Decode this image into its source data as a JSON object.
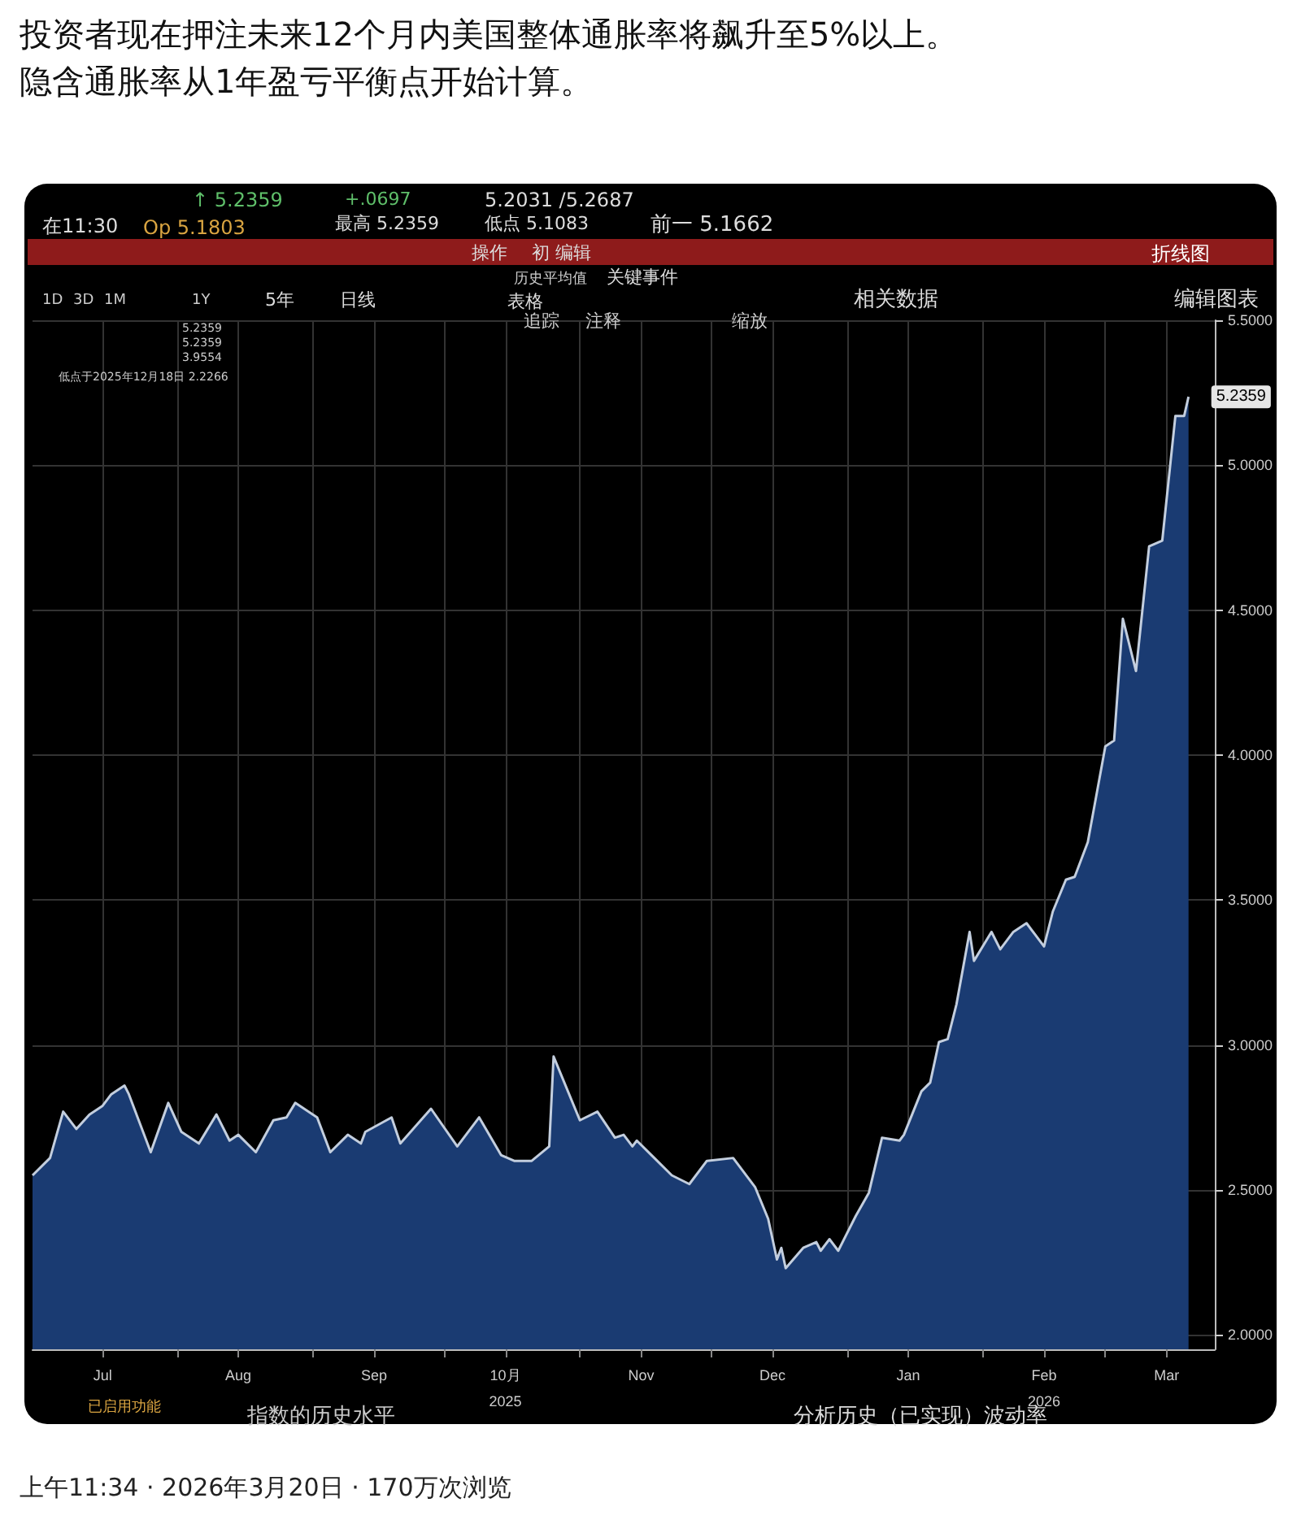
{
  "chart_data": {
    "type": "area",
    "title": "投资者现在押注未来12个月内美国整体通胀率将飙升至5%以上。",
    "subtitle": "隐含通胀率从1年盈亏平衡点开始计算。",
    "x": [
      "2025-06-29",
      "2025-07-03",
      "2025-07-06",
      "2025-07-09",
      "2025-07-12",
      "2025-07-15",
      "2025-07-17",
      "2025-07-20",
      "2025-07-21",
      "2025-07-26",
      "2025-07-30",
      "2025-08-02",
      "2025-08-06",
      "2025-08-10",
      "2025-08-13",
      "2025-08-15",
      "2025-08-19",
      "2025-08-23",
      "2025-08-26",
      "2025-08-28",
      "2025-09-02",
      "2025-09-05",
      "2025-09-09",
      "2025-09-12",
      "2025-09-13",
      "2025-09-19",
      "2025-09-21",
      "2025-09-28",
      "2025-10-04",
      "2025-10-09",
      "2025-10-14",
      "2025-10-17",
      "2025-10-21",
      "2025-10-25",
      "2025-10-26",
      "2025-11-01",
      "2025-11-05",
      "2025-11-09",
      "2025-11-11",
      "2025-11-13",
      "2025-11-14",
      "2025-11-18",
      "2025-11-22",
      "2025-11-26",
      "2025-11-30",
      "2025-12-06",
      "2025-12-11",
      "2025-12-14",
      "2025-12-16",
      "2025-12-17",
      "2025-12-18",
      "2025-12-22",
      "2025-12-25",
      "2025-12-26",
      "2025-12-28",
      "2025-12-30",
      "2026-01-03",
      "2026-01-06",
      "2026-01-09",
      "2026-01-13",
      "2026-01-14",
      "2026-01-18",
      "2026-01-20",
      "2026-01-22",
      "2026-01-24",
      "2026-01-26",
      "2026-01-29",
      "2026-01-30",
      "2026-02-03",
      "2026-02-05",
      "2026-02-08",
      "2026-02-11",
      "2026-02-15",
      "2026-02-17",
      "2026-02-20",
      "2026-02-22",
      "2026-02-25",
      "2026-03-01",
      "2026-03-03",
      "2026-03-05",
      "2026-03-08",
      "2026-03-11",
      "2026-03-14",
      "2026-03-17",
      "2026-03-19",
      "2026-03-20"
    ],
    "series": [
      {
        "color": "#1a3b72",
        "values": [
          2.55,
          2.61,
          2.77,
          2.71,
          2.76,
          2.79,
          2.83,
          2.86,
          2.83,
          2.63,
          2.8,
          2.7,
          2.66,
          2.76,
          2.67,
          2.69,
          2.63,
          2.74,
          2.75,
          2.8,
          2.75,
          2.63,
          2.69,
          2.66,
          2.7,
          2.75,
          2.66,
          2.78,
          2.65,
          2.75,
          2.62,
          2.6,
          2.6,
          2.65,
          2.96,
          2.74,
          2.77,
          2.68,
          2.69,
          2.65,
          2.67,
          2.61,
          2.55,
          2.52,
          2.6,
          2.61,
          2.51,
          2.4,
          2.26,
          2.3,
          2.23,
          2.3,
          2.32,
          2.29,
          2.33,
          2.29,
          2.41,
          2.49,
          2.68,
          2.67,
          2.69,
          2.84,
          2.87,
          3.01,
          3.02,
          3.14,
          3.39,
          3.29,
          3.39,
          3.33,
          3.39,
          3.42,
          3.34,
          3.46,
          3.57,
          3.58,
          3.7,
          4.03,
          4.05,
          4.47,
          4.29,
          4.72,
          4.74,
          5.17,
          5.17,
          5.2359
        ],
        "value_labels": [
          null,
          null,
          null,
          null,
          null,
          null,
          null,
          null,
          null,
          null,
          null,
          null,
          null,
          null,
          null,
          null,
          null,
          null,
          null,
          null,
          null,
          null,
          null,
          null,
          null,
          null,
          null,
          null,
          null,
          null,
          null,
          null,
          null,
          null,
          null,
          null,
          null,
          null,
          null,
          null,
          null,
          null,
          null,
          null,
          null,
          null,
          null,
          null,
          null,
          null,
          null,
          null,
          null,
          null,
          null,
          null,
          null,
          null,
          null,
          null,
          null,
          null,
          null,
          null,
          null,
          null,
          null,
          null,
          null,
          null,
          null,
          null,
          null,
          null,
          null,
          null,
          null,
          null,
          null,
          null,
          null,
          null,
          null,
          null,
          null,
          "5.2359"
        ]
      }
    ],
    "xlim": [
      "2025-06-29",
      "2026-03-26"
    ],
    "xticks": [
      {
        "value": "2025-07-15",
        "label": "Jul"
      },
      {
        "value": "2025-08-01",
        "label": null
      },
      {
        "value": "2025-08-15",
        "label": "Aug"
      },
      {
        "value": "2025-09-01",
        "label": null
      },
      {
        "value": "2025-09-15",
        "label": "Sep"
      },
      {
        "value": "2025-10-01",
        "label": null
      },
      {
        "value": "2025-10-15",
        "label": "10月\n2025"
      },
      {
        "value": "2025-11-01",
        "label": null
      },
      {
        "value": "2025-11-15",
        "label": "Nov"
      },
      {
        "value": "2025-12-01",
        "label": null
      },
      {
        "value": "2025-12-15",
        "label": "Dec"
      },
      {
        "value": "2026-01-01",
        "label": null
      },
      {
        "value": "2026-01-15",
        "label": "Jan"
      },
      {
        "value": "2026-02-01",
        "label": null
      },
      {
        "value": "2026-02-15",
        "label": "Feb\n2026"
      },
      {
        "value": "2026-03-01",
        "label": null
      },
      {
        "value": "2026-03-15",
        "label": "Mar"
      }
    ],
    "ylim": [
      1.95,
      5.5
    ],
    "yticks": [
      {
        "value": 2,
        "label": "2.0000"
      },
      {
        "value": 2.5,
        "label": "2.5000"
      },
      {
        "value": 3,
        "label": "3.0000"
      },
      {
        "value": 3.5,
        "label": "3.5000"
      },
      {
        "value": 4,
        "label": "4.0000"
      },
      {
        "value": 4.5,
        "label": "4.5000"
      },
      {
        "value": 5,
        "label": "5.0000"
      },
      {
        "value": 5.5,
        "label": "5.5000"
      }
    ],
    "grid": true,
    "marker": "none",
    "annotations": [
      "在11:30",
      "↑ 5.2359",
      "Op 5.1803",
      "最高 5.2359",
      "5.2031 /5.2687",
      "低点 5.1083",
      "前一 5.1662",
      "+.0697",
      "操作",
      "初 编辑",
      "折线图",
      "历史平均值",
      "关键事件",
      "1D",
      "3D",
      "1M",
      "1Y",
      "5年",
      "日线",
      "表格",
      "相关数据",
      "编辑图表",
      "追踪",
      "注释",
      "缩放",
      "5.2359",
      "5.2359",
      "3.9554",
      "低点于2025年12月18日 2.2266",
      "已启用功能",
      "指数的历史水平",
      "分析历史（已实现）波动率",
      "上午11:34 · 2026年3月20日 · 170万次浏览"
    ]
  }
}
